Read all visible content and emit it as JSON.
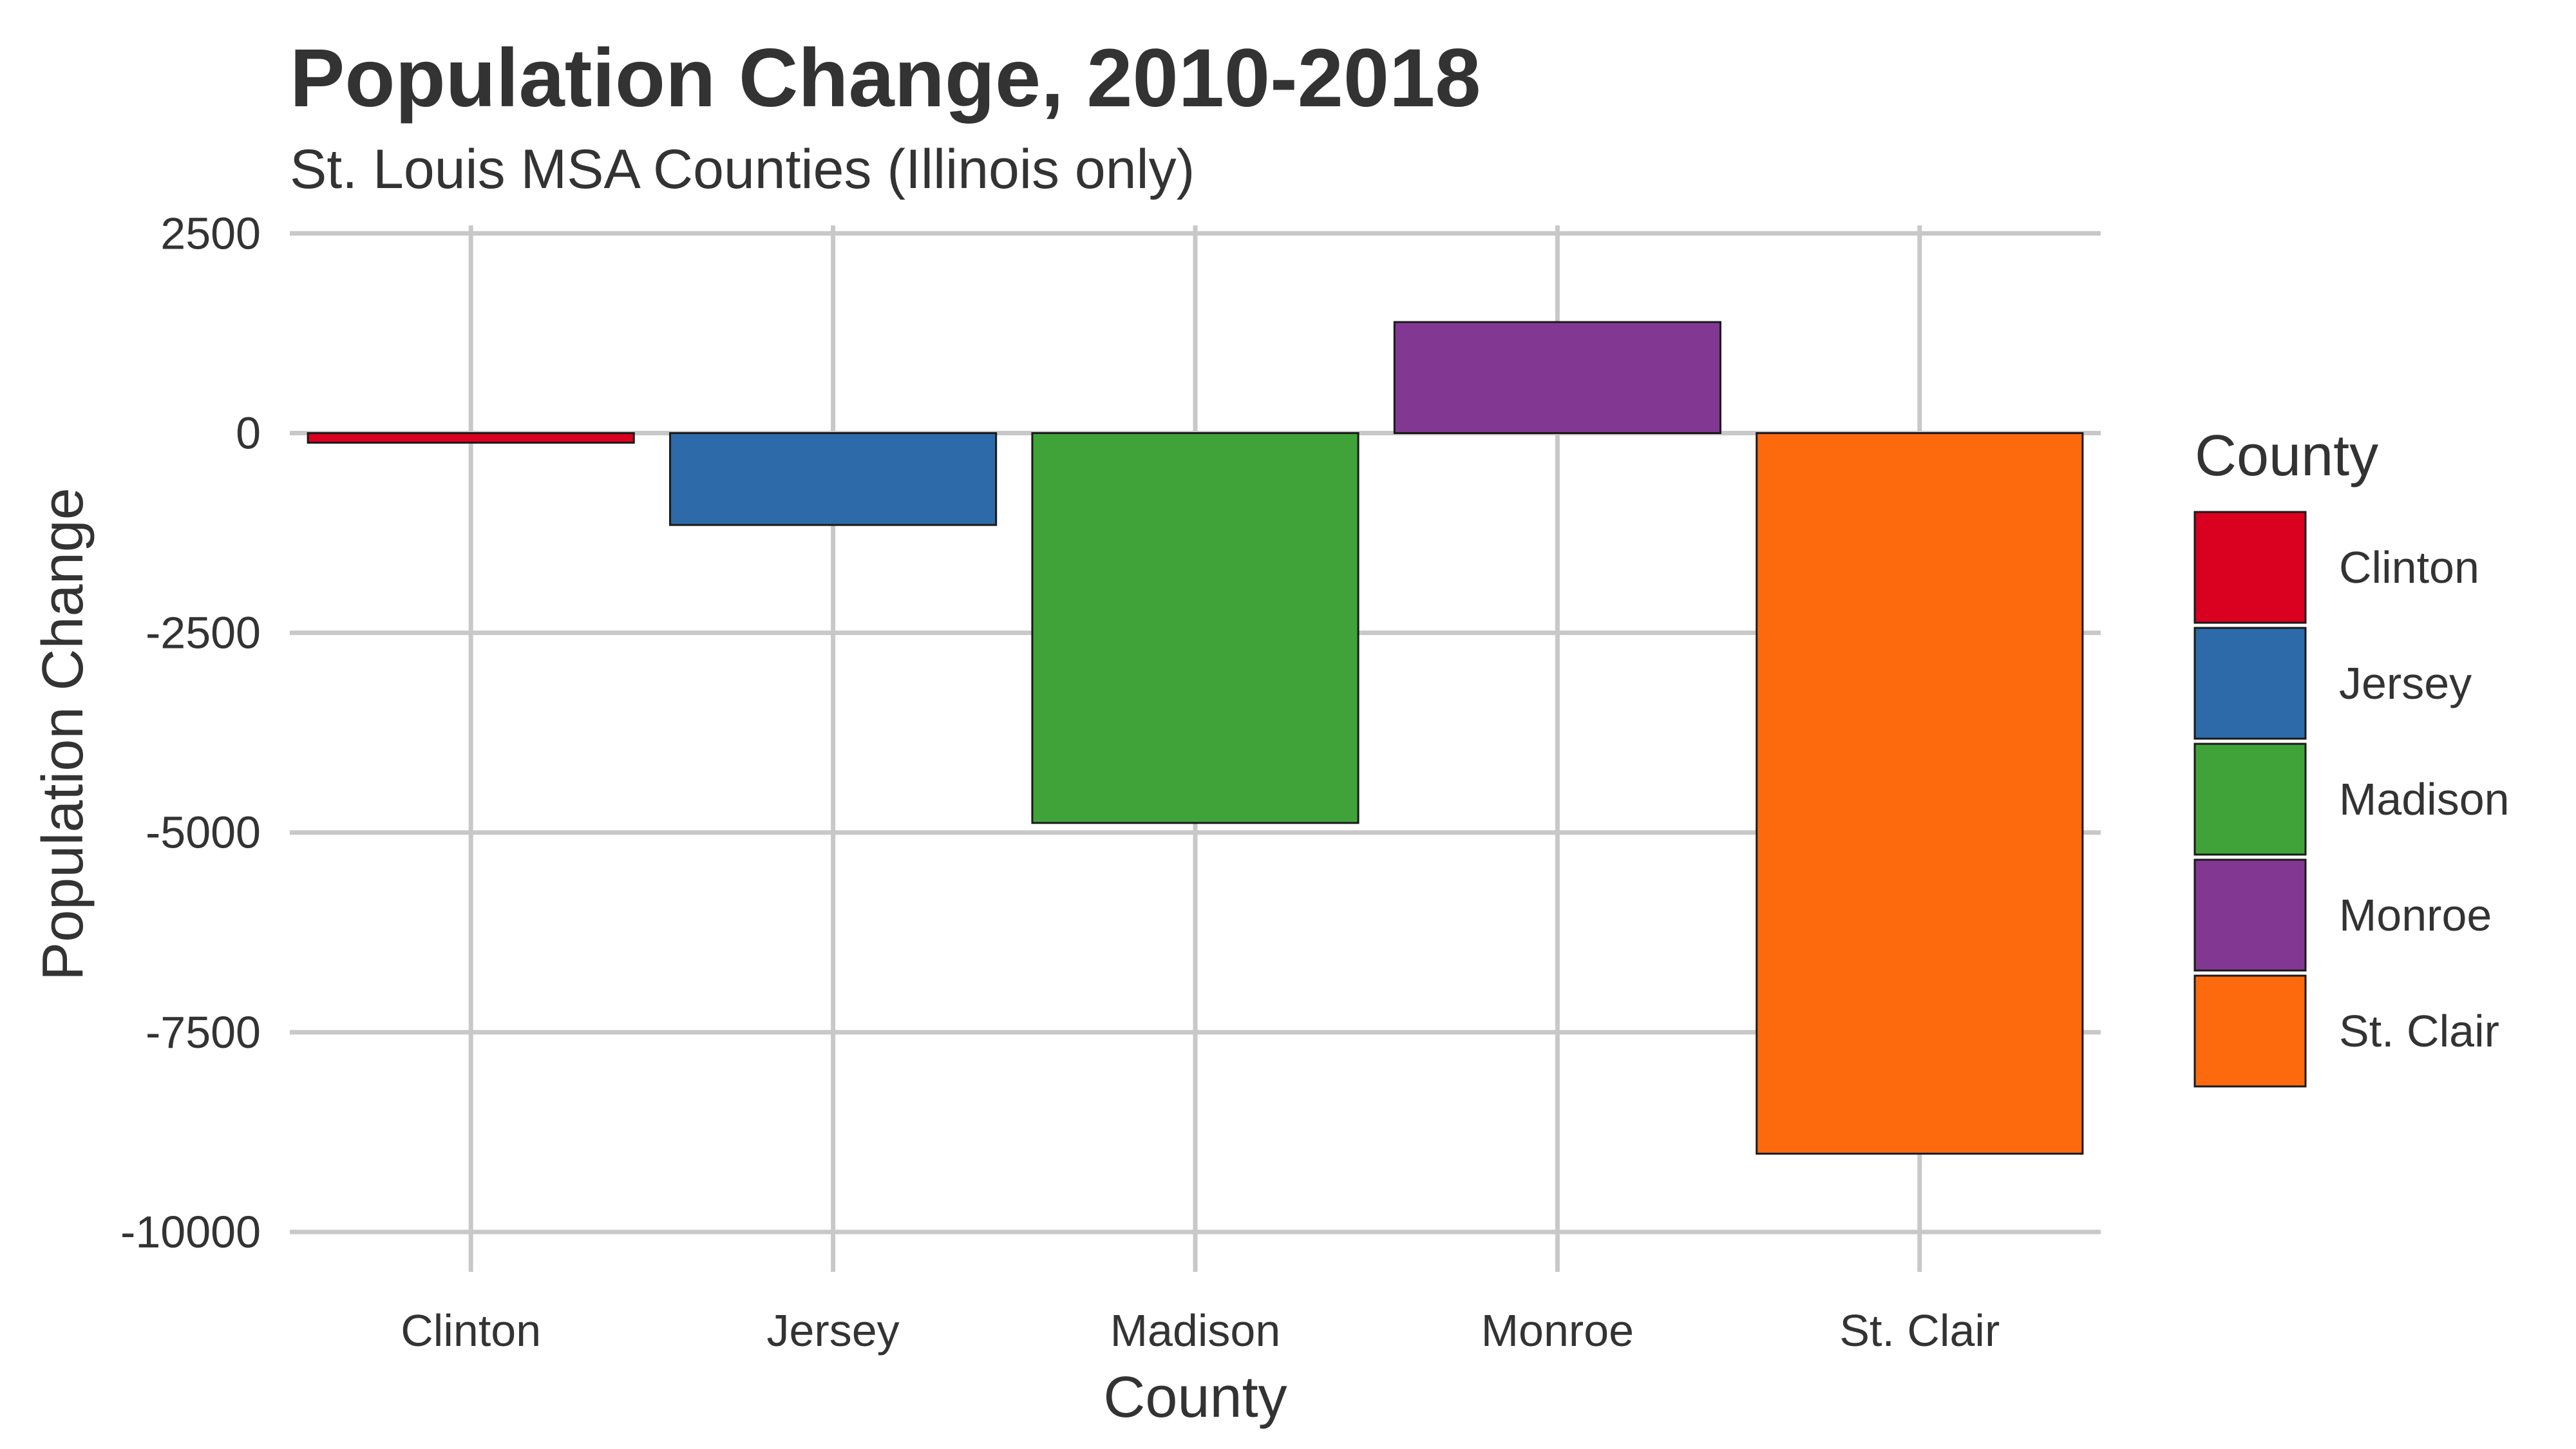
{
  "chart_data": {
    "type": "bar",
    "title": "Population Change, 2010-2018",
    "subtitle": "St. Louis MSA Counties (Illinois only)",
    "xlabel": "County",
    "ylabel": "Population Change",
    "categories": [
      "Clinton",
      "Jersey",
      "Madison",
      "Monroe",
      "St. Clair"
    ],
    "values": [
      -120,
      -1150,
      -4880,
      1390,
      -9020
    ],
    "colors": [
      "#DA0020",
      "#2D6AAA",
      "#40A33A",
      "#823892",
      "#FC6A0D"
    ],
    "ylim": [
      -10500,
      2600
    ],
    "yticks": [
      2500,
      0,
      -2500,
      -5000,
      -7500,
      -10000
    ],
    "ytick_labels": [
      "2500",
      "0",
      "-2500",
      "-5000",
      "-7500",
      "-10000"
    ],
    "grid": true,
    "legend": {
      "title": "County",
      "position": "right",
      "entries": [
        "Clinton",
        "Jersey",
        "Madison",
        "Monroe",
        "St. Clair"
      ]
    }
  }
}
